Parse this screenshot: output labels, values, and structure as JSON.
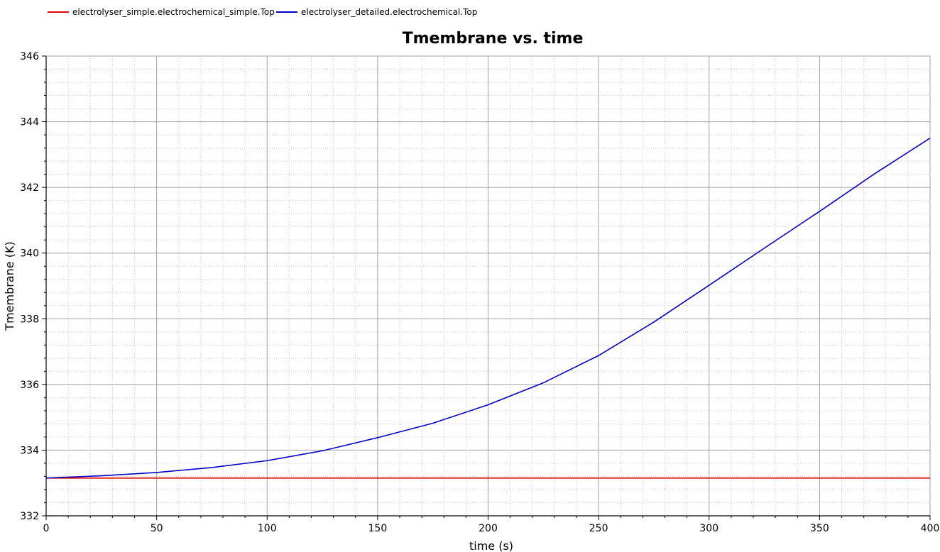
{
  "chart_data": {
    "type": "line",
    "title": "Tmembrane vs. time",
    "xlabel": "time (s)",
    "ylabel": "Tmembrane (K)",
    "xlim": [
      0,
      400
    ],
    "ylim": [
      332,
      346
    ],
    "xticks": [
      0,
      50,
      100,
      150,
      200,
      250,
      300,
      350,
      400
    ],
    "yticks": [
      332,
      334,
      336,
      338,
      340,
      342,
      344,
      346
    ],
    "grid": true,
    "legend_position": "top-left",
    "series": [
      {
        "name": "electrolyser_simple.electrochemical_simple.Top",
        "color": "#e00000",
        "x": [
          0,
          400
        ],
        "y": [
          333.15,
          333.15
        ]
      },
      {
        "name": "electrolyser_detailed.electrochemical.Top",
        "color": "#0000c8",
        "x": [
          0,
          25,
          50,
          75,
          100,
          125,
          150,
          175,
          200,
          225,
          250,
          275,
          300,
          325,
          350,
          375,
          400
        ],
        "y": [
          333.15,
          333.22,
          333.32,
          333.47,
          333.68,
          333.98,
          334.38,
          334.82,
          335.38,
          336.05,
          336.88,
          337.9,
          339.02,
          340.15,
          341.27,
          342.42,
          343.5
        ]
      }
    ]
  }
}
